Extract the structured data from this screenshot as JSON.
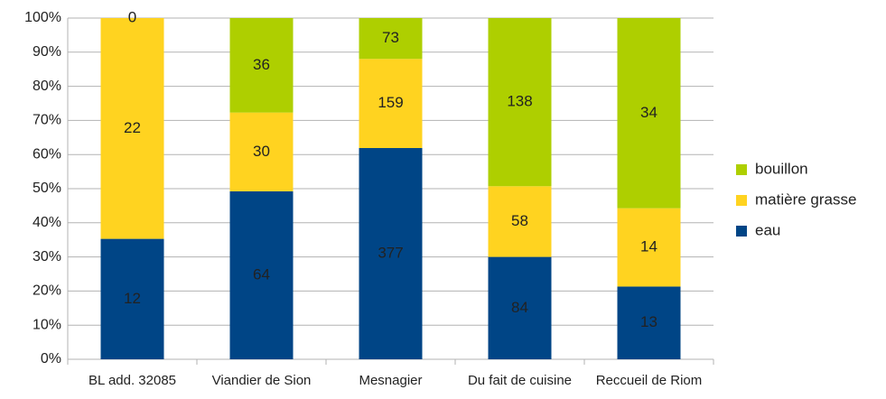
{
  "chart_data": {
    "type": "bar",
    "stacking": "percent",
    "categories": [
      "BL add. 32085",
      "Viandier de Sion",
      "Mesnagier",
      "Du fait de cuisine",
      "Reccueil de Riom"
    ],
    "series": [
      {
        "name": "eau",
        "color": "#004586",
        "values": [
          12,
          64,
          377,
          84,
          13
        ]
      },
      {
        "name": "matière grasse",
        "color": "#ffd320",
        "values": [
          22,
          30,
          159,
          58,
          14
        ]
      },
      {
        "name": "bouillon",
        "color": "#aecf00",
        "values": [
          0,
          36,
          73,
          138,
          34
        ]
      }
    ],
    "ylim": [
      0,
      100
    ],
    "yticks": [
      {
        "value": 0,
        "label": "0%"
      },
      {
        "value": 10,
        "label": "10%"
      },
      {
        "value": 20,
        "label": "20%"
      },
      {
        "value": 30,
        "label": "30%"
      },
      {
        "value": 40,
        "label": "40%"
      },
      {
        "value": 50,
        "label": "50%"
      },
      {
        "value": 60,
        "label": "60%"
      },
      {
        "value": 70,
        "label": "70%"
      },
      {
        "value": 80,
        "label": "80%"
      },
      {
        "value": 90,
        "label": "90%"
      },
      {
        "value": 100,
        "label": "100%"
      }
    ],
    "grid": true,
    "legend": "right"
  }
}
